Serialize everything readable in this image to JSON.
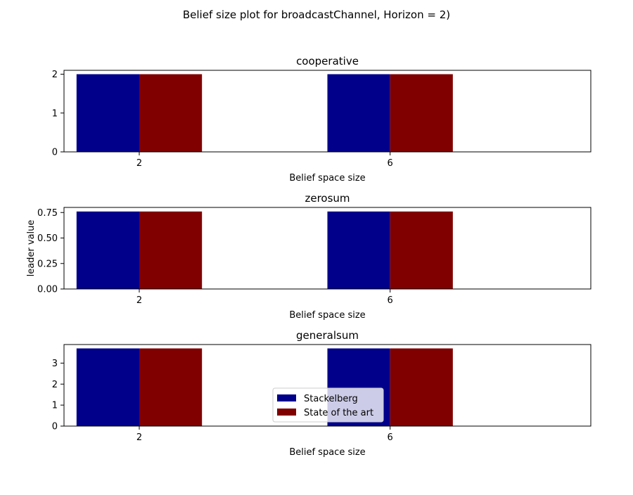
{
  "figure": {
    "title": "Belief size plot for broadcastChannel, Horizon = 2)"
  },
  "colors": {
    "stackelberg": "#00008b",
    "state_of_the_art": "#800000"
  },
  "legend": {
    "entries": [
      "Stackelberg",
      "State of the art"
    ]
  },
  "chart_data": [
    {
      "type": "bar",
      "title": "cooperative",
      "xlabel": "Belief space size",
      "ylabel": "",
      "categories": [
        "2",
        "6"
      ],
      "series": [
        {
          "name": "Stackelberg",
          "values": [
            2,
            2
          ]
        },
        {
          "name": "State of the art",
          "values": [
            2,
            2
          ]
        }
      ],
      "ylim": [
        0,
        2.1
      ],
      "yticks": [
        "0",
        "1",
        "2"
      ],
      "ytick_values": [
        0,
        1,
        2
      ],
      "legend": false
    },
    {
      "type": "bar",
      "title": "zerosum",
      "xlabel": "Belief space size",
      "ylabel": "leader value",
      "categories": [
        "2",
        "6"
      ],
      "series": [
        {
          "name": "Stackelberg",
          "values": [
            0.76,
            0.76
          ]
        },
        {
          "name": "State of the art",
          "values": [
            0.76,
            0.76
          ]
        }
      ],
      "ylim": [
        0,
        0.8
      ],
      "yticks": [
        "0.00",
        "0.25",
        "0.50",
        "0.75"
      ],
      "ytick_values": [
        0,
        0.25,
        0.5,
        0.75
      ],
      "legend": false
    },
    {
      "type": "bar",
      "title": "generalsum",
      "xlabel": "Belief space size",
      "ylabel": "",
      "categories": [
        "2",
        "6"
      ],
      "series": [
        {
          "name": "Stackelberg",
          "values": [
            3.7,
            3.7
          ]
        },
        {
          "name": "State of the art",
          "values": [
            3.7,
            3.7
          ]
        }
      ],
      "ylim": [
        0,
        3.885
      ],
      "yticks": [
        "0",
        "1",
        "2",
        "3"
      ],
      "ytick_values": [
        0,
        1,
        2,
        3
      ],
      "legend": "lower center"
    }
  ]
}
